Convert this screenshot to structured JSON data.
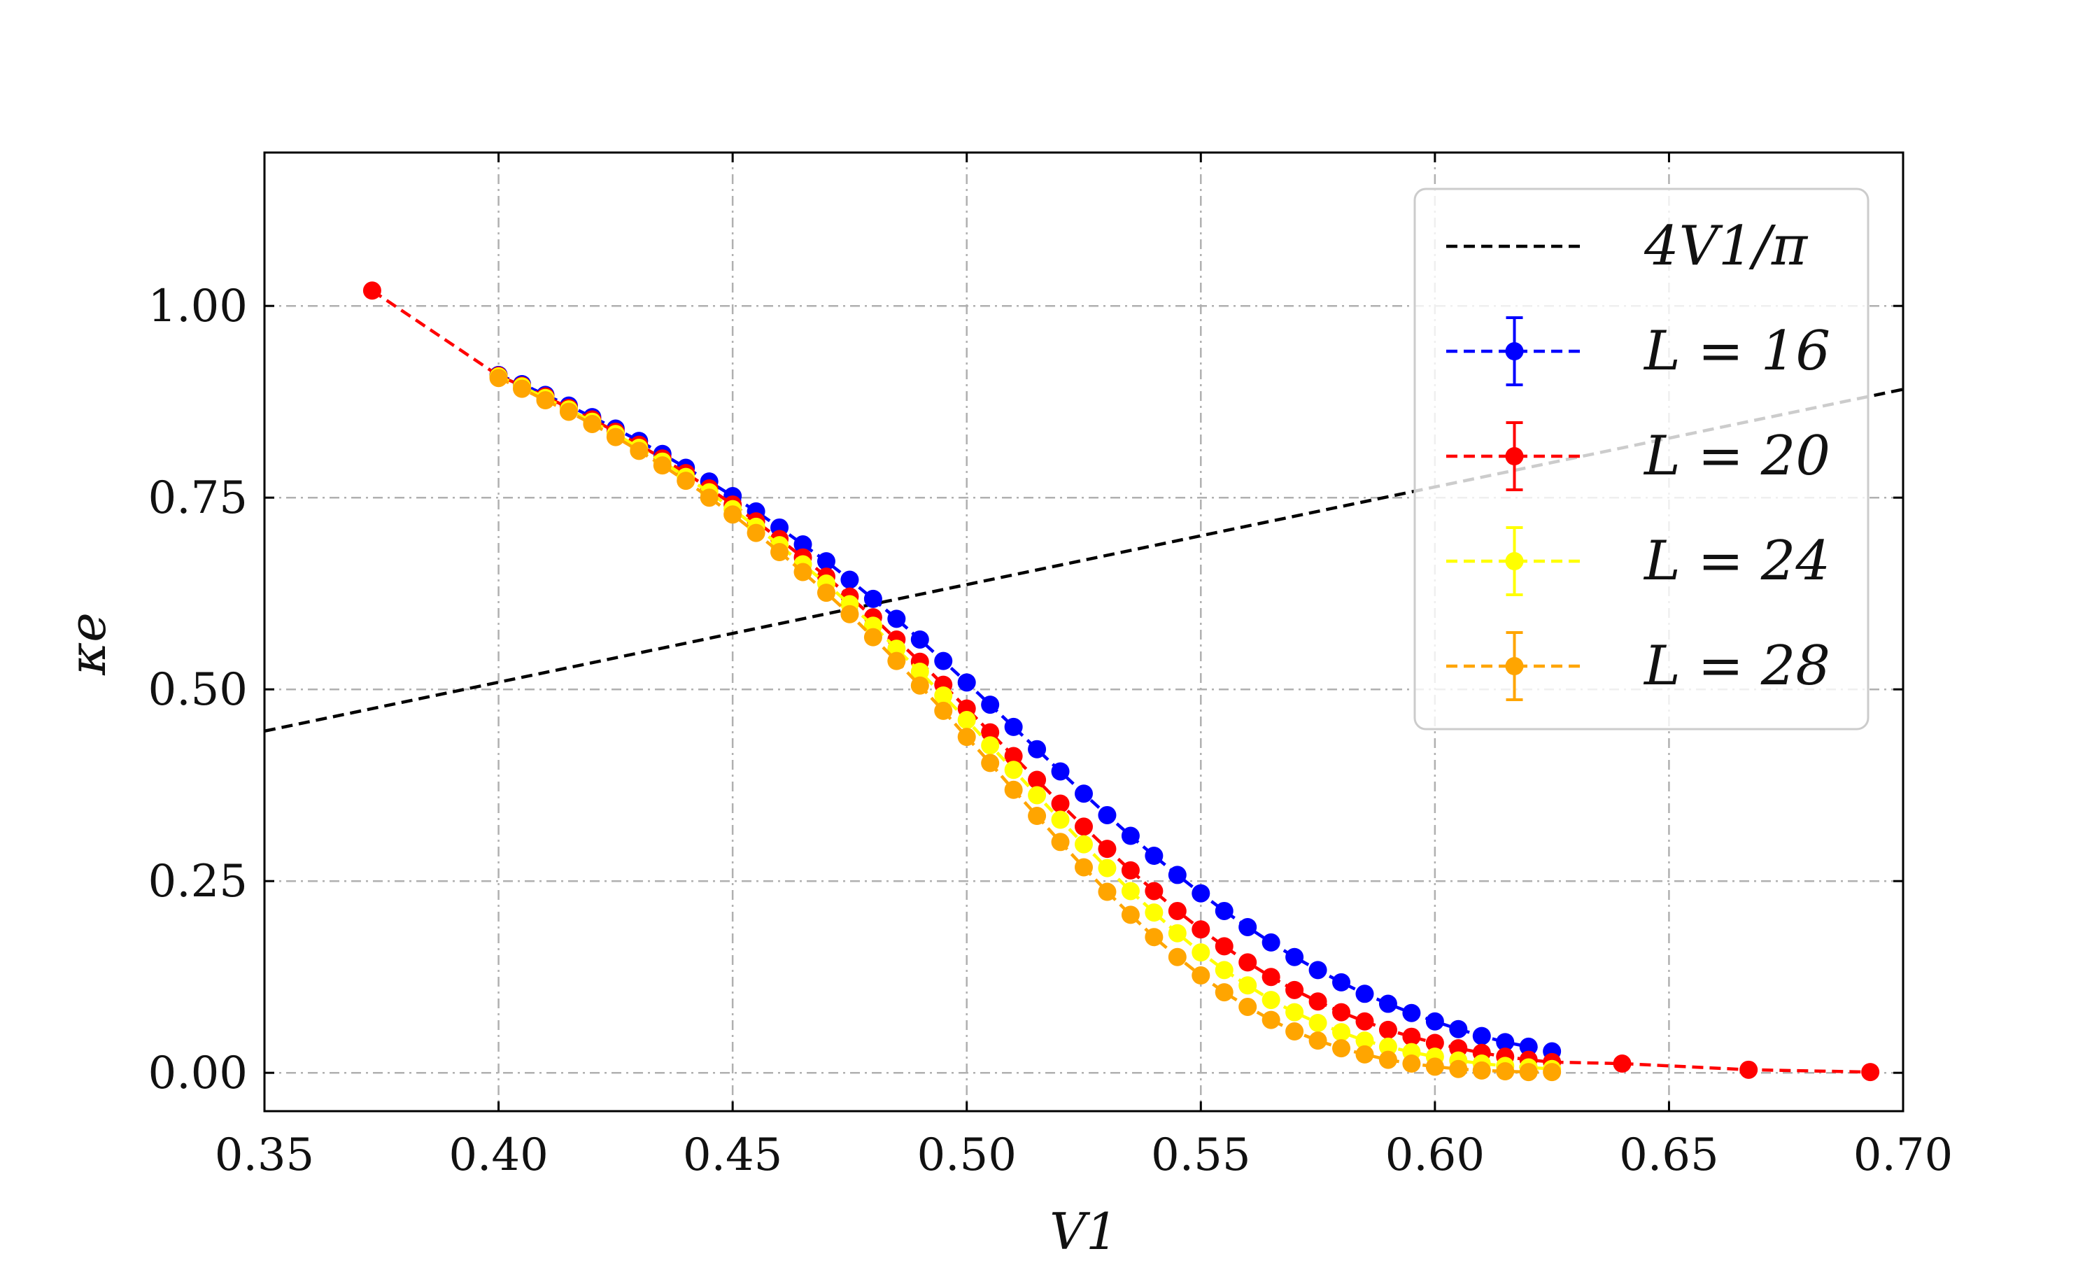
{
  "chart_data": {
    "type": "line",
    "xlabel": "V1",
    "ylabel": "κe",
    "xlim": [
      0.35,
      0.7
    ],
    "ylim": [
      -0.05,
      1.2
    ],
    "xticks": [
      0.35,
      0.4,
      0.45,
      0.5,
      0.55,
      0.6,
      0.65,
      0.7
    ],
    "xtick_labels": [
      "0.35",
      "0.40",
      "0.45",
      "0.50",
      "0.55",
      "0.60",
      "0.65",
      "0.70"
    ],
    "yticks": [
      0.0,
      0.25,
      0.5,
      0.75,
      1.0
    ],
    "ytick_labels": [
      "0.00",
      "0.25",
      "0.50",
      "0.75",
      "1.00"
    ],
    "grid": true,
    "grid_style": "dash-dot",
    "legend_position": "upper-right",
    "reference_line": {
      "label": "4V1/π",
      "formula": "4*x/pi",
      "color": "#000000",
      "style": "dashed",
      "x_range": [
        0.35,
        0.7
      ]
    },
    "series": [
      {
        "name": "L = 16",
        "color": "#0000ff",
        "x": [
          0.4,
          0.405,
          0.41,
          0.415,
          0.42,
          0.425,
          0.43,
          0.435,
          0.44,
          0.445,
          0.45,
          0.455,
          0.46,
          0.465,
          0.47,
          0.475,
          0.48,
          0.485,
          0.49,
          0.495,
          0.5,
          0.505,
          0.51,
          0.515,
          0.52,
          0.525,
          0.53,
          0.535,
          0.54,
          0.545,
          0.55,
          0.555,
          0.56,
          0.565,
          0.57,
          0.575,
          0.58,
          0.585,
          0.59,
          0.595,
          0.6,
          0.605,
          0.61,
          0.615,
          0.62,
          0.625
        ],
        "y": [
          0.91,
          0.898,
          0.884,
          0.87,
          0.855,
          0.84,
          0.824,
          0.807,
          0.789,
          0.771,
          0.752,
          0.732,
          0.711,
          0.689,
          0.667,
          0.643,
          0.618,
          0.592,
          0.565,
          0.537,
          0.509,
          0.48,
          0.451,
          0.422,
          0.393,
          0.364,
          0.336,
          0.309,
          0.283,
          0.258,
          0.234,
          0.211,
          0.19,
          0.17,
          0.151,
          0.134,
          0.118,
          0.103,
          0.09,
          0.078,
          0.067,
          0.057,
          0.048,
          0.04,
          0.034,
          0.028
        ]
      },
      {
        "name": "L = 20",
        "color": "#ff0000",
        "x": [
          0.373,
          0.4,
          0.405,
          0.41,
          0.415,
          0.42,
          0.425,
          0.43,
          0.435,
          0.44,
          0.445,
          0.45,
          0.455,
          0.46,
          0.465,
          0.47,
          0.475,
          0.48,
          0.485,
          0.49,
          0.495,
          0.5,
          0.505,
          0.51,
          0.515,
          0.52,
          0.525,
          0.53,
          0.535,
          0.54,
          0.545,
          0.55,
          0.555,
          0.56,
          0.565,
          0.57,
          0.575,
          0.58,
          0.585,
          0.59,
          0.595,
          0.6,
          0.605,
          0.61,
          0.615,
          0.62,
          0.625,
          0.64,
          0.667,
          0.693
        ],
        "y": [
          1.02,
          0.909,
          0.896,
          0.882,
          0.867,
          0.852,
          0.836,
          0.819,
          0.801,
          0.782,
          0.762,
          0.741,
          0.719,
          0.696,
          0.672,
          0.647,
          0.621,
          0.594,
          0.565,
          0.536,
          0.506,
          0.475,
          0.444,
          0.413,
          0.382,
          0.351,
          0.321,
          0.292,
          0.264,
          0.237,
          0.211,
          0.187,
          0.165,
          0.144,
          0.125,
          0.108,
          0.093,
          0.079,
          0.067,
          0.056,
          0.047,
          0.039,
          0.032,
          0.026,
          0.021,
          0.017,
          0.014,
          0.012,
          0.004,
          0.001
        ]
      },
      {
        "name": "L = 24",
        "color": "#ffff00",
        "x": [
          0.4,
          0.405,
          0.41,
          0.415,
          0.42,
          0.425,
          0.43,
          0.435,
          0.44,
          0.445,
          0.45,
          0.455,
          0.46,
          0.465,
          0.47,
          0.475,
          0.48,
          0.485,
          0.49,
          0.495,
          0.5,
          0.505,
          0.51,
          0.515,
          0.52,
          0.525,
          0.53,
          0.535,
          0.54,
          0.545,
          0.55,
          0.555,
          0.56,
          0.565,
          0.57,
          0.575,
          0.58,
          0.585,
          0.59,
          0.595,
          0.6,
          0.605,
          0.61,
          0.615,
          0.62,
          0.625
        ],
        "y": [
          0.908,
          0.895,
          0.88,
          0.865,
          0.849,
          0.833,
          0.815,
          0.797,
          0.777,
          0.757,
          0.735,
          0.712,
          0.688,
          0.663,
          0.638,
          0.611,
          0.583,
          0.553,
          0.523,
          0.492,
          0.46,
          0.427,
          0.395,
          0.362,
          0.33,
          0.298,
          0.267,
          0.237,
          0.209,
          0.182,
          0.157,
          0.134,
          0.114,
          0.095,
          0.079,
          0.065,
          0.053,
          0.042,
          0.034,
          0.027,
          0.021,
          0.016,
          0.012,
          0.009,
          0.007,
          0.005
        ]
      },
      {
        "name": "L = 28",
        "color": "#ffa500",
        "x": [
          0.4,
          0.405,
          0.41,
          0.415,
          0.42,
          0.425,
          0.43,
          0.435,
          0.44,
          0.445,
          0.45,
          0.455,
          0.46,
          0.465,
          0.47,
          0.475,
          0.48,
          0.485,
          0.49,
          0.495,
          0.5,
          0.505,
          0.51,
          0.515,
          0.52,
          0.525,
          0.53,
          0.535,
          0.54,
          0.545,
          0.55,
          0.555,
          0.56,
          0.565,
          0.57,
          0.575,
          0.58,
          0.585,
          0.59,
          0.595,
          0.6,
          0.605,
          0.61,
          0.615,
          0.62,
          0.625
        ],
        "y": [
          0.906,
          0.892,
          0.877,
          0.862,
          0.846,
          0.829,
          0.811,
          0.792,
          0.772,
          0.75,
          0.728,
          0.704,
          0.679,
          0.653,
          0.626,
          0.598,
          0.568,
          0.537,
          0.505,
          0.472,
          0.438,
          0.404,
          0.369,
          0.335,
          0.301,
          0.268,
          0.236,
          0.206,
          0.177,
          0.151,
          0.127,
          0.105,
          0.086,
          0.069,
          0.054,
          0.042,
          0.032,
          0.024,
          0.017,
          0.012,
          0.008,
          0.005,
          0.003,
          0.002,
          0.001,
          0.001
        ]
      }
    ]
  }
}
